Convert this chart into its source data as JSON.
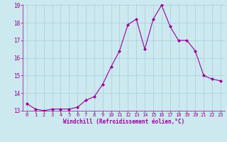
{
  "x": [
    0,
    1,
    2,
    3,
    4,
    5,
    6,
    7,
    8,
    9,
    10,
    11,
    12,
    13,
    14,
    15,
    16,
    17,
    18,
    19,
    20,
    21,
    22,
    23
  ],
  "y": [
    13.4,
    13.1,
    13.0,
    13.1,
    13.1,
    13.1,
    13.2,
    13.6,
    13.8,
    14.5,
    15.5,
    16.4,
    17.9,
    18.2,
    16.5,
    18.2,
    19.0,
    17.8,
    17.0,
    17.0,
    16.4,
    15.0,
    14.8,
    14.7
  ],
  "line_color": "#990099",
  "marker": "D",
  "markersize": 2.0,
  "linewidth": 0.8,
  "bg_color": "#cce9f0",
  "grid_color": "#aacdd8",
  "xlabel": "Windchill (Refroidissement éolien,°C)",
  "xlabel_color": "#990099",
  "tick_color": "#990099",
  "ylim": [
    13,
    19
  ],
  "xlim": [
    -0.5,
    23.5
  ],
  "yticks": [
    13,
    14,
    15,
    16,
    17,
    18,
    19
  ],
  "xticks": [
    0,
    1,
    2,
    3,
    4,
    5,
    6,
    7,
    8,
    9,
    10,
    11,
    12,
    13,
    14,
    15,
    16,
    17,
    18,
    19,
    20,
    21,
    22,
    23
  ],
  "tick_fontsize": 5.0,
  "xlabel_fontsize": 5.5
}
